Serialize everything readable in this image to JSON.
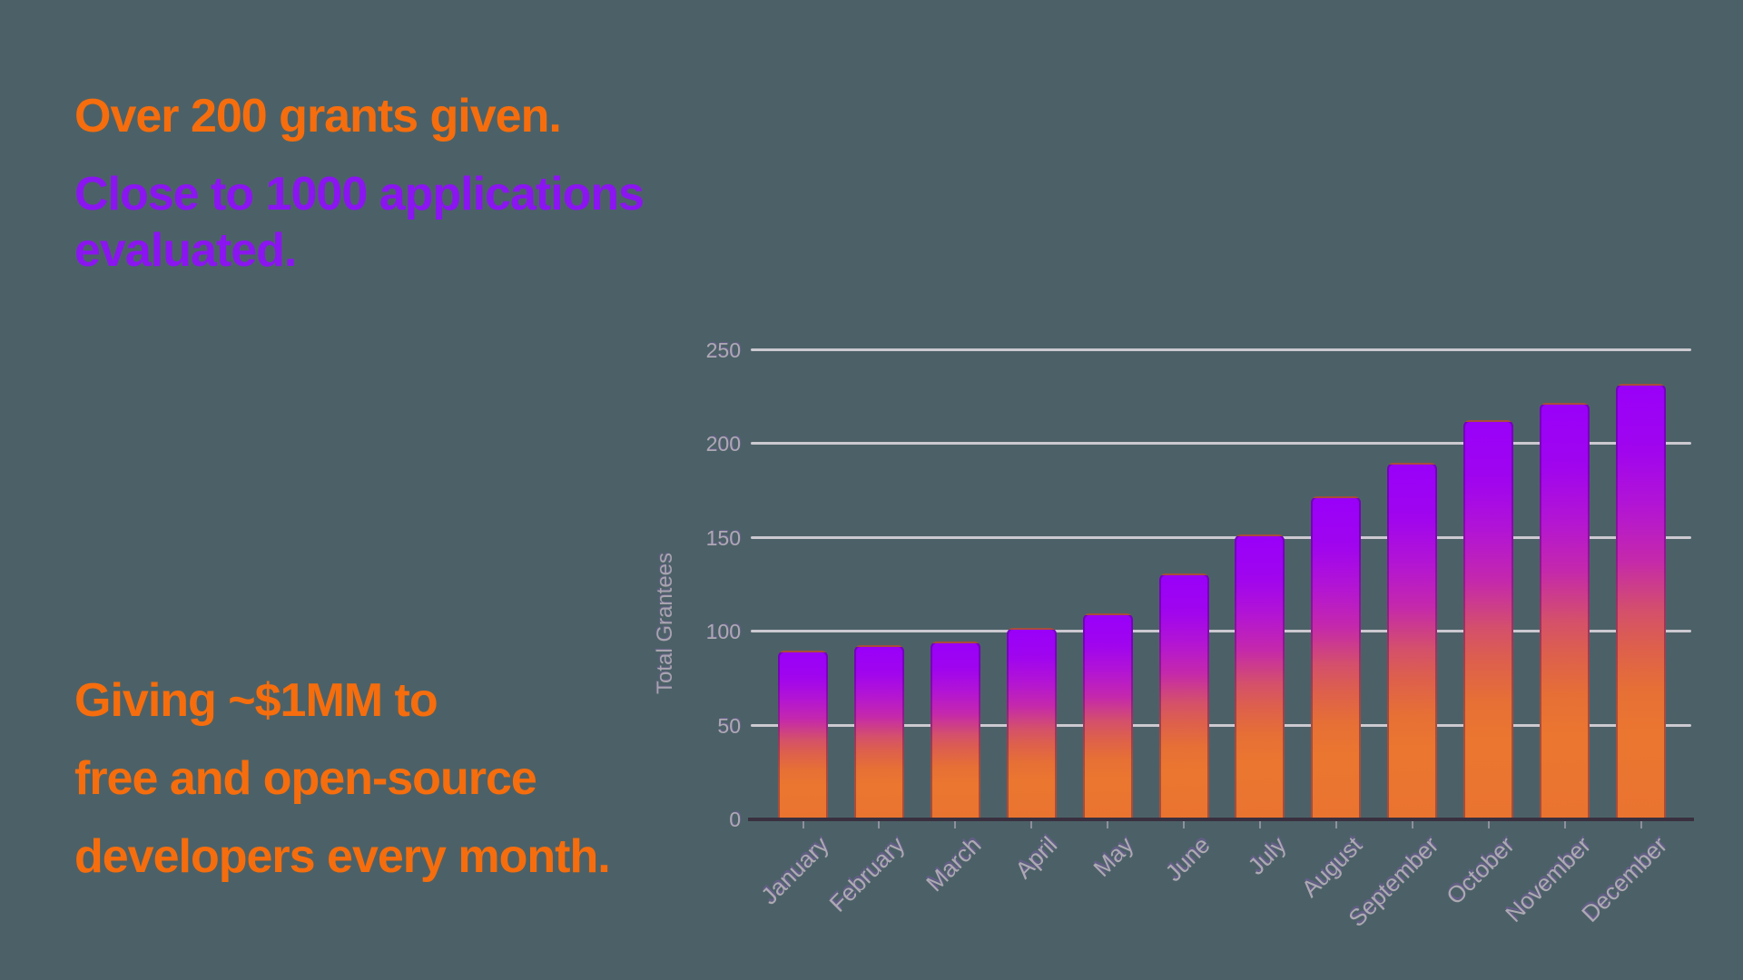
{
  "background_color": "#4C6167",
  "headline_top": {
    "grants_line": "Over 200 grants given.",
    "grants_color": "#F66D0D",
    "applications_line": "Close to 1000 applications evaluated.",
    "applications_color": "#8B15F0"
  },
  "headline_bottom": {
    "color": "#F66D0D",
    "lines": [
      "Giving ~$1MM to",
      "free and open-source",
      "developers every month."
    ]
  },
  "chart_data": {
    "type": "bar",
    "title": "",
    "xlabel": "",
    "ylabel": "Total Grantees",
    "categories": [
      "January",
      "February",
      "March",
      "April",
      "May",
      "June",
      "July",
      "August",
      "September",
      "October",
      "November",
      "December"
    ],
    "values": [
      90,
      93,
      95,
      102,
      110,
      131,
      152,
      172,
      190,
      213,
      222,
      232
    ],
    "ylim": [
      0,
      250
    ],
    "yticks": [
      0,
      50,
      100,
      150,
      200,
      250
    ],
    "grid": true,
    "legend": "none",
    "bar_gradient": [
      {
        "color": "#9900F9",
        "pos": 0
      },
      {
        "color": "#A005EE",
        "pos": 15
      },
      {
        "color": "#B315D3",
        "pos": 28
      },
      {
        "color": "#C428AC",
        "pos": 40
      },
      {
        "color": "#D4506B",
        "pos": 52
      },
      {
        "color": "#DD5F4D",
        "pos": 60
      },
      {
        "color": "#E66F36",
        "pos": 70
      },
      {
        "color": "#EB762F",
        "pos": 80
      },
      {
        "color": "#E97430",
        "pos": 100
      }
    ],
    "gridline_color": "#CCC9D1",
    "axis_line_color": "#39303F",
    "tick_label_color": "#ADA9B3",
    "axis_title_color": "#A8A4AE"
  }
}
